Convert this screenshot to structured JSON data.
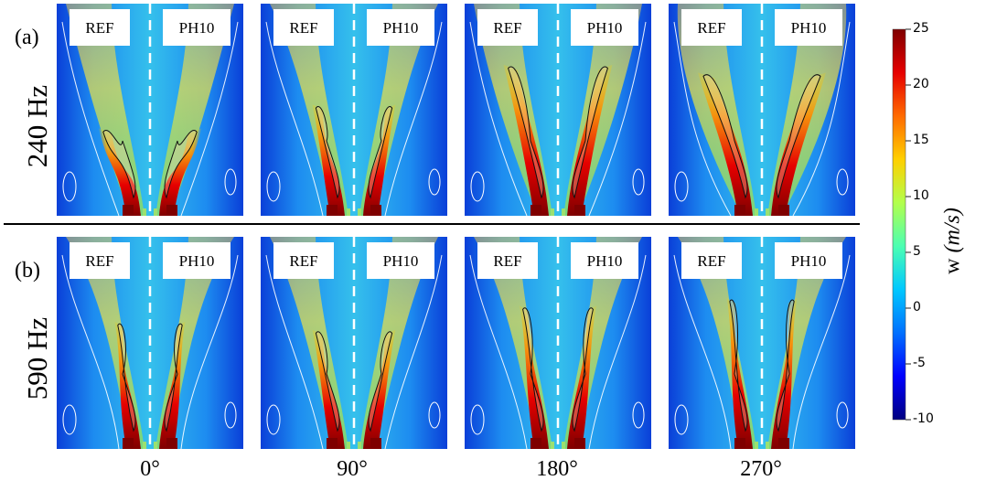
{
  "rows": [
    {
      "letter": "(a)",
      "freq": "240 Hz"
    },
    {
      "letter": "(b)",
      "freq": "590 Hz"
    }
  ],
  "angles": [
    "0°",
    "90°",
    "180°",
    "270°"
  ],
  "legend": {
    "left": "REF",
    "right": "PH10"
  },
  "colorbar": {
    "variable": "w",
    "unit": "(m/s)",
    "ticks": [
      "25",
      "20",
      "15",
      "10",
      "5",
      "0",
      "-5",
      "-10"
    ],
    "range": [
      -10,
      25
    ],
    "colormap": [
      "#00007f",
      "#0000ff",
      "#0070ff",
      "#00c8ff",
      "#4cffb2",
      "#b2ff4c",
      "#ffd000",
      "#ff6a00",
      "#e60000",
      "#7f0000"
    ]
  },
  "fields": [
    {
      "row": 0,
      "col": 0,
      "intensity": 0.55,
      "spread": 0.8
    },
    {
      "row": 0,
      "col": 1,
      "intensity": 0.7,
      "spread": 0.65
    },
    {
      "row": 0,
      "col": 2,
      "intensity": 0.95,
      "spread": 0.85
    },
    {
      "row": 0,
      "col": 3,
      "intensity": 0.9,
      "spread": 1.0
    },
    {
      "row": 1,
      "col": 0,
      "intensity": 0.8,
      "spread": 0.55
    },
    {
      "row": 1,
      "col": 1,
      "intensity": 0.75,
      "spread": 0.65
    },
    {
      "row": 1,
      "col": 2,
      "intensity": 0.9,
      "spread": 0.6
    },
    {
      "row": 1,
      "col": 3,
      "intensity": 0.95,
      "spread": 0.55
    }
  ]
}
